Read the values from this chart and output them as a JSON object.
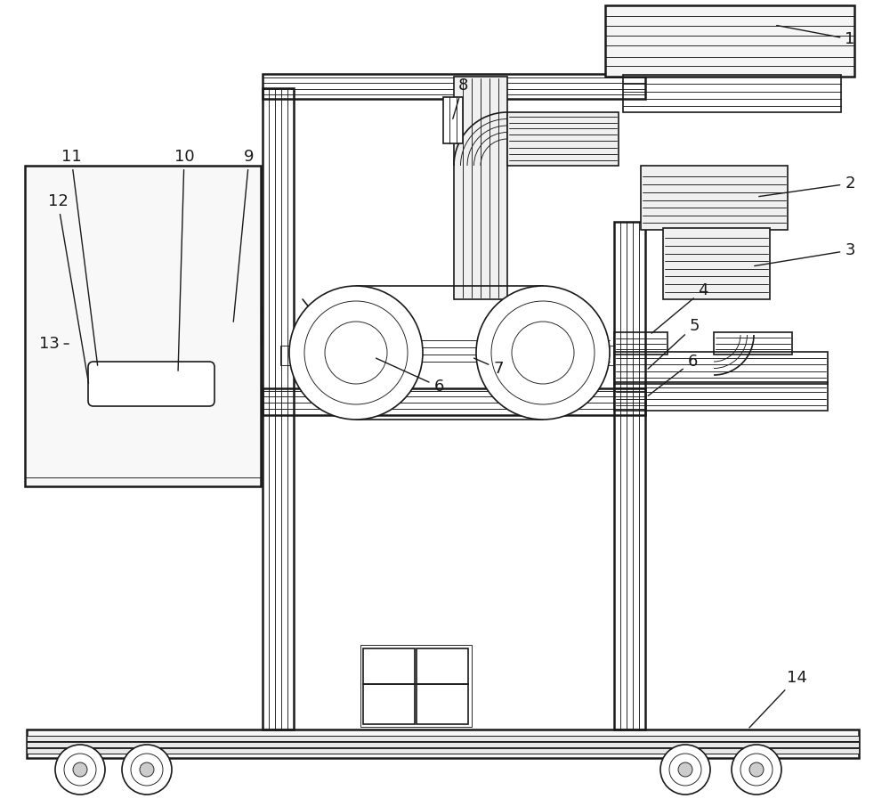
{
  "background": "#ffffff",
  "lc": "#1a1a1a",
  "figsize": [
    10.0,
    9.06
  ],
  "dpi": 100
}
